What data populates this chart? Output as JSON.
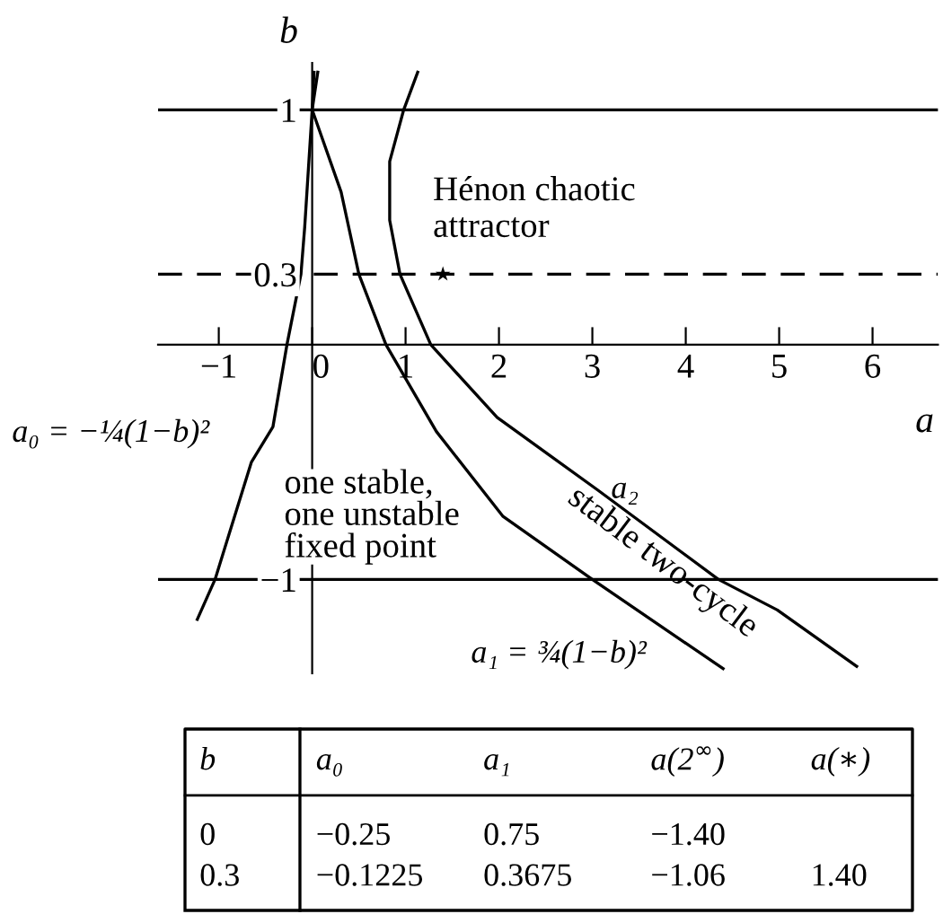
{
  "chart_data": {
    "type": "line",
    "xlabel": "a",
    "ylabel": "b",
    "xlim": [
      -1.65,
      6.7
    ],
    "ylim": [
      -1.4,
      1.2
    ],
    "xticks": [
      -1,
      0,
      1,
      2,
      3,
      4,
      5,
      6
    ],
    "yticks": [
      {
        "value": -1,
        "label": "−1"
      },
      0.3,
      1
    ],
    "grid": false,
    "legend": false,
    "line_style": "solid",
    "series": [
      {
        "name": "a₀ = −¼(1−b)²",
        "color": "#000000",
        "x": [
          0.02,
          0,
          -0.08,
          -0.12,
          -0.27,
          -0.42,
          -0.65,
          -1.04,
          -1.23
        ],
        "values": [
          1.16,
          1,
          0.5,
          0.3,
          0,
          -0.35,
          -0.5,
          -1,
          -1.17
        ]
      },
      {
        "name": "a₁ = ¾(1−b)²",
        "color": "#000000",
        "x": [
          0.06,
          0,
          0.31,
          0.5,
          0.79,
          1.33,
          2.04,
          3.0,
          4.4
        ],
        "values": [
          1.16,
          1,
          0.65,
          0.3,
          0,
          -0.37,
          -0.73,
          -1,
          -1.38
        ]
      },
      {
        "name": "a₂",
        "color": "#000000",
        "x": [
          1.13,
          0.98,
          0.83,
          0.83,
          0.94,
          1.27,
          1.98,
          3.06,
          4.35,
          4.98,
          5.83
        ],
        "values": [
          1.16,
          1,
          0.78,
          0.53,
          0.3,
          0,
          -0.31,
          -0.62,
          -1,
          -1.13,
          -1.37
        ]
      },
      {
        "type": "scatter",
        "marker": "star",
        "color": "#000000",
        "x": [
          1.4
        ],
        "values": [
          0.3
        ]
      }
    ],
    "ref_lines": [
      {
        "axis": "y",
        "value": 1,
        "line_style": "solid",
        "color": "#000000"
      },
      {
        "axis": "y",
        "value": 0.3,
        "line_style": "dashed",
        "color": "#000000"
      },
      {
        "axis": "y",
        "value": -1,
        "line_style": "solid",
        "color": "#000000"
      }
    ],
    "annotations": [
      {
        "text": "Hénon chaotic\nattractor",
        "x": 1.4,
        "y": 0.3
      },
      "one stable,\none unstable\nfixed point",
      "stable two-cycle",
      "b\ta₀\ta₁\ta(2$^{∞}$)\ta(∗)",
      "0\t−0.25\t0.75\t−1.40\t",
      "0.3\t−0.1225\t0.3675\t−1.06\t1.40"
    ]
  }
}
